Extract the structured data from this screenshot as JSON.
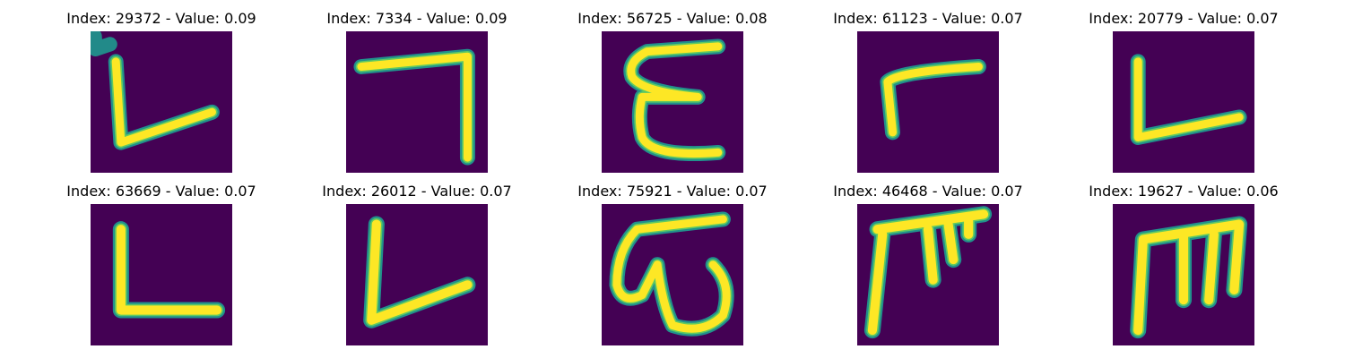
{
  "panels": [
    {
      "title": "Index: 29372 - Value: 0.09",
      "index": 29372,
      "value": 0.09,
      "glyph": "L"
    },
    {
      "title": "Index: 7334 - Value: 0.09",
      "index": 7334,
      "value": 0.09,
      "glyph": "7"
    },
    {
      "title": "Index: 56725 - Value: 0.08",
      "index": 56725,
      "value": 0.08,
      "glyph": "E"
    },
    {
      "title": "Index: 61123 - Value: 0.07",
      "index": 61123,
      "value": 0.07,
      "glyph": "r"
    },
    {
      "title": "Index: 20779 - Value: 0.07",
      "index": 20779,
      "value": 0.07,
      "glyph": "L"
    },
    {
      "title": "Index: 63669 - Value: 0.07",
      "index": 63669,
      "value": 0.07,
      "glyph": "L"
    },
    {
      "title": "Index: 26012 - Value: 0.07",
      "index": 26012,
      "value": 0.07,
      "glyph": "L"
    },
    {
      "title": "Index: 75921 - Value: 0.07",
      "index": 75921,
      "value": 0.07,
      "glyph": "ω"
    },
    {
      "title": "Index: 46468 - Value: 0.07",
      "index": 46468,
      "value": 0.07,
      "glyph": "π"
    },
    {
      "title": "Index: 19627 - Value: 0.06",
      "index": 19627,
      "value": 0.06,
      "glyph": "m"
    }
  ],
  "colors": {
    "background": "#440154",
    "edge": "#21918c",
    "mid": "#5ec962",
    "core": "#fde725"
  }
}
